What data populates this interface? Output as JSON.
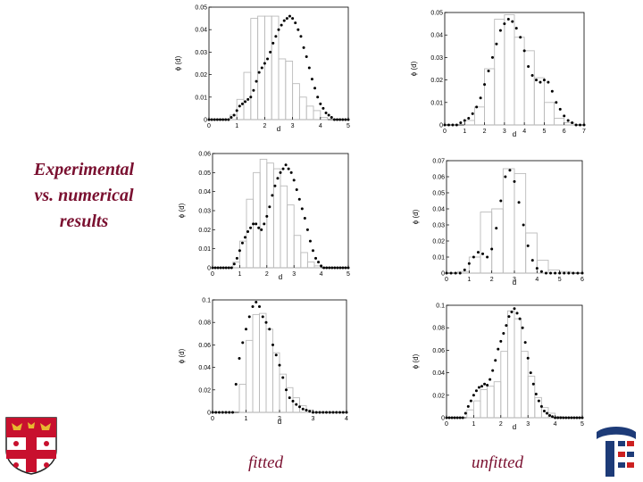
{
  "side_title": {
    "line1": "Experimental",
    "line2": "vs. numerical",
    "line3": "results"
  },
  "captions": {
    "left": "fitted",
    "right": "unfitted"
  },
  "colors": {
    "title": "#7a1030",
    "bars": "#bbbbbb",
    "dots": "#000000",
    "logo_blue": "#1d3b78",
    "logo_red": "#cc2020",
    "crest_red": "#c8102e",
    "crest_gold": "#e8b830"
  },
  "icons": {
    "crest": "university-crest-icon",
    "logo": "institute-logo-icon"
  },
  "chart_data": [
    {
      "type": "bar+scatter",
      "position": "left column, row 1 (fitted)",
      "xlabel": "d",
      "ylabel": "ϕ (d)",
      "xlim": [
        0,
        5
      ],
      "ylim": [
        0,
        0.05
      ],
      "xticks": [
        "0",
        "1",
        "2",
        "3",
        "4",
        "5"
      ],
      "yticks": [
        "0",
        "0.01",
        "0.02",
        "0.03",
        "0.04",
        "0.05"
      ],
      "histogram": {
        "edges": [
          0,
          0.25,
          0.5,
          0.75,
          1,
          1.25,
          1.5,
          1.75,
          2,
          2.25,
          2.5,
          2.75,
          3,
          3.25,
          3.5,
          3.75,
          4,
          4.25,
          4.5,
          4.75,
          5
        ],
        "values": [
          0,
          0,
          0,
          0.002,
          0.009,
          0.021,
          0.045,
          0.046,
          0.046,
          0.046,
          0.027,
          0.026,
          0.016,
          0.01,
          0.006,
          0.004,
          0.001,
          0,
          0,
          0
        ]
      },
      "simulation": {
        "x": [
          0,
          0.1,
          0.2,
          0.3,
          0.4,
          0.5,
          0.6,
          0.7,
          0.8,
          0.9,
          1,
          1.1,
          1.2,
          1.3,
          1.4,
          1.5,
          1.6,
          1.7,
          1.8,
          1.9,
          2,
          2.1,
          2.2,
          2.3,
          2.4,
          2.5,
          2.6,
          2.7,
          2.8,
          2.9,
          3,
          3.1,
          3.2,
          3.3,
          3.4,
          3.5,
          3.6,
          3.7,
          3.8,
          3.9,
          4,
          4.1,
          4.2,
          4.3,
          4.4,
          4.5,
          4.6,
          4.7,
          4.8,
          4.9,
          5
        ],
        "y": [
          0,
          0,
          0,
          0,
          0,
          0,
          0,
          0,
          0.001,
          0.002,
          0.004,
          0.006,
          0.007,
          0.008,
          0.009,
          0.01,
          0.013,
          0.017,
          0.021,
          0.023,
          0.025,
          0.027,
          0.03,
          0.034,
          0.037,
          0.04,
          0.042,
          0.044,
          0.045,
          0.046,
          0.045,
          0.043,
          0.04,
          0.037,
          0.032,
          0.028,
          0.023,
          0.018,
          0.014,
          0.01,
          0.007,
          0.005,
          0.003,
          0.002,
          0.001,
          0,
          0,
          0,
          0,
          0,
          0
        ]
      }
    },
    {
      "type": "bar+scatter",
      "position": "right column, row 1 (unfitted)",
      "xlabel": "d",
      "ylabel": "ϕ (d)",
      "xlim": [
        0,
        7
      ],
      "ylim": [
        0,
        0.05
      ],
      "xticks": [
        "0",
        "1",
        "2",
        "3",
        "4",
        "5",
        "6",
        "7"
      ],
      "yticks": [
        "0",
        "0.01",
        "0.02",
        "0.03",
        "0.04",
        "0.05"
      ],
      "histogram": {
        "edges": [
          0,
          0.5,
          1,
          1.5,
          2,
          2.5,
          3,
          3.5,
          4,
          4.5,
          5,
          5.5,
          6,
          6.5,
          7
        ],
        "values": [
          0,
          0,
          0.002,
          0.008,
          0.025,
          0.047,
          0.049,
          0.039,
          0.033,
          0.021,
          0.01,
          0.003,
          0.001,
          0
        ]
      },
      "simulation": {
        "x": [
          0,
          0.2,
          0.4,
          0.6,
          0.8,
          1,
          1.2,
          1.4,
          1.6,
          1.8,
          2,
          2.2,
          2.4,
          2.6,
          2.8,
          3,
          3.2,
          3.4,
          3.6,
          3.8,
          4,
          4.2,
          4.4,
          4.6,
          4.8,
          5,
          5.2,
          5.4,
          5.6,
          5.8,
          6,
          6.2,
          6.4,
          6.6,
          6.8,
          7
        ],
        "y": [
          0,
          0,
          0,
          0,
          0.001,
          0.002,
          0.003,
          0.005,
          0.008,
          0.012,
          0.018,
          0.024,
          0.03,
          0.036,
          0.042,
          0.045,
          0.047,
          0.046,
          0.043,
          0.039,
          0.033,
          0.026,
          0.022,
          0.02,
          0.019,
          0.02,
          0.019,
          0.015,
          0.01,
          0.007,
          0.004,
          0.002,
          0.001,
          0,
          0,
          0
        ]
      }
    },
    {
      "type": "bar+scatter",
      "position": "left column, row 2 (fitted)",
      "xlabel": "d",
      "ylabel": "ϕ (d)",
      "xlim": [
        0,
        5
      ],
      "ylim": [
        0,
        0.06
      ],
      "xticks": [
        "0",
        "1",
        "2",
        "3",
        "4",
        "5"
      ],
      "yticks": [
        "0",
        "0.01",
        "0.02",
        "0.03",
        "0.04",
        "0.05",
        "0.06"
      ],
      "histogram": {
        "edges": [
          0,
          0.25,
          0.5,
          0.75,
          1,
          1.25,
          1.5,
          1.75,
          2,
          2.25,
          2.5,
          2.75,
          3,
          3.25,
          3.5,
          3.75,
          4,
          4.25,
          4.5,
          4.75,
          5
        ],
        "values": [
          0,
          0,
          0,
          0.003,
          0.014,
          0.036,
          0.05,
          0.057,
          0.055,
          0.052,
          0.043,
          0.033,
          0.017,
          0.008,
          0.003,
          0.001,
          0,
          0,
          0,
          0
        ]
      },
      "simulation": {
        "x": [
          0,
          0.1,
          0.2,
          0.3,
          0.4,
          0.5,
          0.6,
          0.7,
          0.8,
          0.9,
          1,
          1.1,
          1.2,
          1.3,
          1.4,
          1.5,
          1.6,
          1.7,
          1.8,
          1.9,
          2,
          2.1,
          2.2,
          2.3,
          2.4,
          2.5,
          2.6,
          2.7,
          2.8,
          2.9,
          3,
          3.1,
          3.2,
          3.3,
          3.4,
          3.5,
          3.6,
          3.7,
          3.8,
          3.9,
          4,
          4.1,
          4.2,
          4.3,
          4.4,
          4.5,
          4.6,
          4.7,
          4.8,
          4.9,
          5
        ],
        "y": [
          0,
          0,
          0,
          0,
          0,
          0,
          0,
          0,
          0.002,
          0.005,
          0.009,
          0.013,
          0.016,
          0.019,
          0.021,
          0.023,
          0.023,
          0.021,
          0.02,
          0.023,
          0.027,
          0.032,
          0.038,
          0.043,
          0.047,
          0.05,
          0.052,
          0.054,
          0.052,
          0.05,
          0.046,
          0.041,
          0.036,
          0.031,
          0.026,
          0.02,
          0.014,
          0.009,
          0.005,
          0.003,
          0.001,
          0,
          0,
          0,
          0,
          0,
          0,
          0,
          0,
          0,
          0
        ]
      }
    },
    {
      "type": "bar+scatter",
      "position": "right column, row 2 (unfitted)",
      "xlabel": "d",
      "ylabel": "ϕ (d)",
      "xlim": [
        0,
        6
      ],
      "ylim": [
        0,
        0.07
      ],
      "xticks": [
        "0",
        "1",
        "2",
        "3",
        "4",
        "5",
        "6"
      ],
      "yticks": [
        "0",
        "0.01",
        "0.02",
        "0.03",
        "0.04",
        "0.05",
        "0.06",
        "0.07"
      ],
      "histogram": {
        "edges": [
          0,
          0.5,
          1,
          1.5,
          2,
          2.5,
          3,
          3.5,
          4,
          4.5,
          5,
          5.5,
          6
        ],
        "values": [
          0,
          0.001,
          0.01,
          0.038,
          0.04,
          0.065,
          0.062,
          0.025,
          0.008,
          0.002,
          0.001,
          0
        ]
      },
      "simulation": {
        "x": [
          0,
          0.2,
          0.4,
          0.6,
          0.8,
          1,
          1.2,
          1.4,
          1.6,
          1.8,
          2,
          2.2,
          2.4,
          2.6,
          2.8,
          3,
          3.2,
          3.4,
          3.6,
          3.8,
          4,
          4.2,
          4.4,
          4.6,
          4.8,
          5,
          5.2,
          5.4,
          5.6,
          5.8,
          6
        ],
        "y": [
          0,
          0,
          0,
          0,
          0.002,
          0.006,
          0.01,
          0.013,
          0.012,
          0.01,
          0.015,
          0.028,
          0.045,
          0.06,
          0.064,
          0.057,
          0.044,
          0.03,
          0.017,
          0.008,
          0.003,
          0.001,
          0,
          0,
          0,
          0,
          0,
          0,
          0,
          0,
          0
        ]
      }
    },
    {
      "type": "bar+scatter",
      "position": "left column, row 3 (fitted)",
      "xlabel": "d",
      "ylabel": "ϕ (d)",
      "xlim": [
        0,
        4
      ],
      "ylim": [
        0,
        0.1
      ],
      "xticks": [
        "0",
        "1",
        "2",
        "3",
        "4"
      ],
      "yticks": [
        "0",
        "0.02",
        "0.04",
        "0.06",
        "0.08",
        "0.1"
      ],
      "histogram": {
        "edges": [
          0,
          0.2,
          0.4,
          0.6,
          0.8,
          1,
          1.2,
          1.4,
          1.6,
          1.8,
          2,
          2.2,
          2.4,
          2.6,
          2.8,
          3,
          3.2,
          3.4,
          3.6,
          3.8,
          4
        ],
        "values": [
          0,
          0,
          0,
          0,
          0.025,
          0.064,
          0.087,
          0.088,
          0.074,
          0.053,
          0.034,
          0.022,
          0.013,
          0.006,
          0.002,
          0,
          0,
          0,
          0,
          0
        ]
      },
      "simulation": {
        "x": [
          0,
          0.1,
          0.2,
          0.3,
          0.4,
          0.5,
          0.6,
          0.7,
          0.8,
          0.9,
          1,
          1.1,
          1.2,
          1.3,
          1.4,
          1.5,
          1.6,
          1.7,
          1.8,
          1.9,
          2,
          2.1,
          2.2,
          2.3,
          2.4,
          2.5,
          2.6,
          2.7,
          2.8,
          2.9,
          3,
          3.1,
          3.2,
          3.3,
          3.4,
          3.5,
          3.6,
          3.7,
          3.8,
          3.9,
          4
        ],
        "y": [
          0,
          0,
          0,
          0,
          0,
          0,
          0,
          0.025,
          0.048,
          0.062,
          0.074,
          0.085,
          0.094,
          0.098,
          0.094,
          0.085,
          0.08,
          0.074,
          0.06,
          0.051,
          0.042,
          0.031,
          0.02,
          0.013,
          0.01,
          0.007,
          0.005,
          0.003,
          0.002,
          0.001,
          0,
          0,
          0,
          0,
          0,
          0,
          0,
          0,
          0,
          0,
          0
        ]
      }
    },
    {
      "type": "bar+scatter",
      "position": "right column, row 3 (unfitted)",
      "xlabel": "d",
      "ylabel": "ϕ (d)",
      "xlim": [
        0,
        5
      ],
      "ylim": [
        0,
        0.1
      ],
      "xticks": [
        "0",
        "1",
        "2",
        "3",
        "4",
        "5"
      ],
      "yticks": [
        "0",
        "0.02",
        "0.04",
        "0.06",
        "0.08",
        "0.1"
      ],
      "histogram": {
        "edges": [
          0,
          0.25,
          0.5,
          0.75,
          1,
          1.25,
          1.5,
          1.75,
          2,
          2.25,
          2.5,
          2.75,
          3,
          3.25,
          3.5,
          3.75,
          4,
          4.25,
          4.5,
          4.75,
          5
        ],
        "values": [
          0,
          0,
          0,
          0.007,
          0.015,
          0.025,
          0.028,
          0.032,
          0.059,
          0.095,
          0.088,
          0.059,
          0.037,
          0.018,
          0.009,
          0.004,
          0.001,
          0,
          0,
          0
        ]
      },
      "simulation": {
        "x": [
          0,
          0.1,
          0.2,
          0.3,
          0.4,
          0.5,
          0.6,
          0.7,
          0.8,
          0.9,
          1,
          1.1,
          1.2,
          1.3,
          1.4,
          1.5,
          1.6,
          1.7,
          1.8,
          1.9,
          2,
          2.1,
          2.2,
          2.3,
          2.4,
          2.5,
          2.6,
          2.7,
          2.8,
          2.9,
          3,
          3.1,
          3.2,
          3.3,
          3.4,
          3.5,
          3.6,
          3.7,
          3.8,
          3.9,
          4,
          4.1,
          4.2,
          4.3,
          4.4,
          4.5,
          4.6,
          4.7,
          4.8,
          4.9,
          5
        ],
        "y": [
          0,
          0,
          0,
          0,
          0,
          0,
          0,
          0.004,
          0.01,
          0.015,
          0.02,
          0.024,
          0.027,
          0.028,
          0.03,
          0.029,
          0.034,
          0.042,
          0.051,
          0.061,
          0.068,
          0.075,
          0.082,
          0.09,
          0.094,
          0.097,
          0.093,
          0.088,
          0.08,
          0.067,
          0.053,
          0.04,
          0.03,
          0.021,
          0.015,
          0.01,
          0.006,
          0.004,
          0.002,
          0.001,
          0,
          0,
          0,
          0,
          0,
          0,
          0,
          0,
          0,
          0,
          0
        ]
      }
    }
  ]
}
